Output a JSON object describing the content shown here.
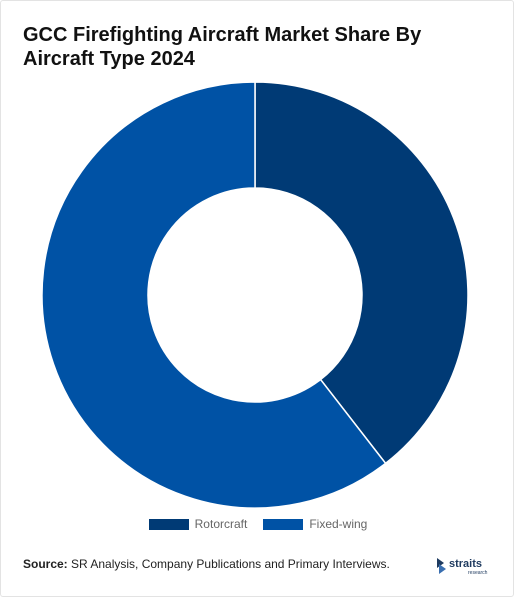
{
  "chart_data": {
    "type": "pie",
    "title": "GCC Firefighting Aircraft Market Share By Aircraft Type 2024",
    "categories": [
      "Rotorcraft",
      "Fixed-wing"
    ],
    "values": [
      39.5,
      60.5
    ],
    "colors": [
      "#003a75",
      "#0052a5"
    ],
    "donut": true,
    "legend_position": "bottom"
  },
  "legend": [
    {
      "label": "Rotorcraft",
      "color": "#003a75"
    },
    {
      "label": "Fixed-wing",
      "color": "#0052a5"
    }
  ],
  "footer": {
    "source_label": "Source:",
    "source_text": " SR Analysis, Company Publications and Primary Interviews."
  },
  "logo": {
    "name": "straits",
    "sub": "research",
    "color": "#1e3a5f"
  }
}
